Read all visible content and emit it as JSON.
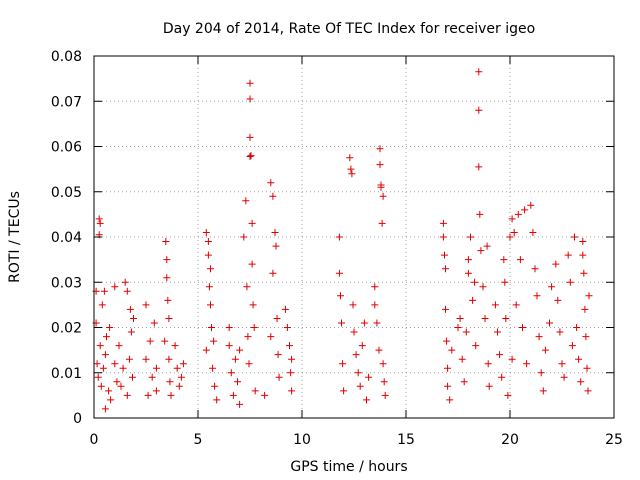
{
  "chart_data": {
    "type": "scatter",
    "title": "Day 204 of 2014, Rate Of TEC Index for receiver igeo",
    "xlabel": "GPS time / hours",
    "ylabel": "ROTI / TECUs",
    "xlim": [
      0,
      25
    ],
    "ylim": [
      0,
      0.08
    ],
    "x_ticks": [
      0,
      5,
      10,
      15,
      20,
      25
    ],
    "x_tick_labels": [
      "0",
      "5",
      "10",
      "15",
      "20",
      "25"
    ],
    "y_ticks": [
      0,
      0.01,
      0.02,
      0.03,
      0.04,
      0.05,
      0.06,
      0.07,
      0.08
    ],
    "y_tick_labels": [
      "0",
      "0.01",
      "0.02",
      "0.03",
      "0.04",
      "0.05",
      "0.06",
      "0.07",
      "0.08"
    ],
    "grid": true,
    "marker": "+",
    "marker_color": "#e00000",
    "series": [
      {
        "name": "ROTI",
        "points": [
          [
            0.1,
            0.028
          ],
          [
            0.1,
            0.021
          ],
          [
            0.15,
            0.012
          ],
          [
            0.2,
            0.009
          ],
          [
            0.25,
            0.044
          ],
          [
            0.25,
            0.0405
          ],
          [
            0.3,
            0.043
          ],
          [
            0.3,
            0.016
          ],
          [
            0.35,
            0.007
          ],
          [
            0.4,
            0.025
          ],
          [
            0.45,
            0.011
          ],
          [
            0.5,
            0.028
          ],
          [
            0.55,
            0.002
          ],
          [
            0.55,
            0.014
          ],
          [
            0.6,
            0.018
          ],
          [
            0.7,
            0.006
          ],
          [
            0.75,
            0.02
          ],
          [
            0.8,
            0.004
          ],
          [
            1.0,
            0.029
          ],
          [
            1.0,
            0.012
          ],
          [
            1.1,
            0.008
          ],
          [
            1.2,
            0.016
          ],
          [
            1.3,
            0.007
          ],
          [
            1.4,
            0.011
          ],
          [
            1.5,
            0.03
          ],
          [
            1.6,
            0.028
          ],
          [
            1.6,
            0.005
          ],
          [
            1.7,
            0.013
          ],
          [
            1.75,
            0.024
          ],
          [
            1.8,
            0.019
          ],
          [
            1.85,
            0.009
          ],
          [
            1.9,
            0.022
          ],
          [
            2.5,
            0.025
          ],
          [
            2.5,
            0.013
          ],
          [
            2.6,
            0.005
          ],
          [
            2.7,
            0.017
          ],
          [
            2.8,
            0.009
          ],
          [
            2.9,
            0.021
          ],
          [
            3.0,
            0.011
          ],
          [
            3.0,
            0.006
          ],
          [
            3.4,
            0.017
          ],
          [
            3.45,
            0.039
          ],
          [
            3.5,
            0.035
          ],
          [
            3.5,
            0.031
          ],
          [
            3.55,
            0.026
          ],
          [
            3.6,
            0.022
          ],
          [
            3.6,
            0.013
          ],
          [
            3.65,
            0.008
          ],
          [
            3.7,
            0.005
          ],
          [
            3.9,
            0.016
          ],
          [
            4.0,
            0.011
          ],
          [
            4.1,
            0.007
          ],
          [
            4.2,
            0.009
          ],
          [
            4.3,
            0.012
          ],
          [
            5.4,
            0.041
          ],
          [
            5.4,
            0.015
          ],
          [
            5.5,
            0.039
          ],
          [
            5.5,
            0.036
          ],
          [
            5.55,
            0.029
          ],
          [
            5.6,
            0.033
          ],
          [
            5.6,
            0.025
          ],
          [
            5.65,
            0.02
          ],
          [
            5.7,
            0.011
          ],
          [
            5.75,
            0.017
          ],
          [
            5.8,
            0.007
          ],
          [
            5.9,
            0.004
          ],
          [
            6.5,
            0.02
          ],
          [
            6.5,
            0.016
          ],
          [
            6.6,
            0.01
          ],
          [
            6.7,
            0.005
          ],
          [
            6.8,
            0.013
          ],
          [
            6.9,
            0.008
          ],
          [
            7.0,
            0.015
          ],
          [
            7.0,
            0.003
          ],
          [
            7.2,
            0.04
          ],
          [
            7.3,
            0.048
          ],
          [
            7.35,
            0.029
          ],
          [
            7.4,
            0.018
          ],
          [
            7.45,
            0.012
          ],
          [
            7.5,
            0.074
          ],
          [
            7.5,
            0.0705
          ],
          [
            7.5,
            0.062
          ],
          [
            7.5,
            0.0578
          ],
          [
            7.55,
            0.058
          ],
          [
            7.6,
            0.043
          ],
          [
            7.6,
            0.034
          ],
          [
            7.65,
            0.025
          ],
          [
            7.7,
            0.02
          ],
          [
            7.75,
            0.006
          ],
          [
            8.2,
            0.005
          ],
          [
            8.5,
            0.052
          ],
          [
            8.5,
            0.018
          ],
          [
            8.6,
            0.049
          ],
          [
            8.6,
            0.032
          ],
          [
            8.7,
            0.041
          ],
          [
            8.75,
            0.038
          ],
          [
            8.8,
            0.022
          ],
          [
            8.85,
            0.014
          ],
          [
            8.9,
            0.009
          ],
          [
            9.2,
            0.024
          ],
          [
            9.3,
            0.02
          ],
          [
            9.4,
            0.016
          ],
          [
            9.45,
            0.01
          ],
          [
            9.5,
            0.006
          ],
          [
            9.5,
            0.013
          ],
          [
            11.8,
            0.04
          ],
          [
            11.8,
            0.032
          ],
          [
            11.85,
            0.027
          ],
          [
            11.9,
            0.021
          ],
          [
            11.95,
            0.012
          ],
          [
            12.0,
            0.006
          ],
          [
            12.3,
            0.0575
          ],
          [
            12.35,
            0.055
          ],
          [
            12.4,
            0.054
          ],
          [
            12.45,
            0.025
          ],
          [
            12.5,
            0.019
          ],
          [
            12.6,
            0.014
          ],
          [
            12.7,
            0.01
          ],
          [
            12.8,
            0.007
          ],
          [
            12.9,
            0.016
          ],
          [
            13.0,
            0.021
          ],
          [
            13.1,
            0.004
          ],
          [
            13.2,
            0.009
          ],
          [
            13.5,
            0.029
          ],
          [
            13.5,
            0.025
          ],
          [
            13.6,
            0.021
          ],
          [
            13.7,
            0.015
          ],
          [
            13.75,
            0.0595
          ],
          [
            13.75,
            0.056
          ],
          [
            13.8,
            0.0515
          ],
          [
            13.8,
            0.051
          ],
          [
            13.85,
            0.043
          ],
          [
            13.9,
            0.049
          ],
          [
            13.9,
            0.012
          ],
          [
            13.95,
            0.008
          ],
          [
            14.0,
            0.005
          ],
          [
            16.8,
            0.043
          ],
          [
            16.8,
            0.04
          ],
          [
            16.85,
            0.036
          ],
          [
            16.9,
            0.033
          ],
          [
            16.9,
            0.024
          ],
          [
            16.95,
            0.017
          ],
          [
            17.0,
            0.011
          ],
          [
            17.0,
            0.007
          ],
          [
            17.1,
            0.004
          ],
          [
            17.2,
            0.015
          ],
          [
            17.5,
            0.02
          ],
          [
            17.6,
            0.022
          ],
          [
            17.7,
            0.013
          ],
          [
            17.8,
            0.008
          ],
          [
            17.9,
            0.019
          ],
          [
            18.0,
            0.035
          ],
          [
            18.0,
            0.032
          ],
          [
            18.1,
            0.04
          ],
          [
            18.2,
            0.026
          ],
          [
            18.3,
            0.03
          ],
          [
            18.35,
            0.016
          ],
          [
            18.5,
            0.0765
          ],
          [
            18.5,
            0.068
          ],
          [
            18.5,
            0.0555
          ],
          [
            18.55,
            0.045
          ],
          [
            18.6,
            0.037
          ],
          [
            18.7,
            0.029
          ],
          [
            18.8,
            0.022
          ],
          [
            18.9,
            0.038
          ],
          [
            18.95,
            0.012
          ],
          [
            19.0,
            0.007
          ],
          [
            19.3,
            0.025
          ],
          [
            19.4,
            0.019
          ],
          [
            19.5,
            0.014
          ],
          [
            19.6,
            0.009
          ],
          [
            19.7,
            0.035
          ],
          [
            19.75,
            0.03
          ],
          [
            19.8,
            0.022
          ],
          [
            19.9,
            0.005
          ],
          [
            20.0,
            0.04
          ],
          [
            20.1,
            0.044
          ],
          [
            20.1,
            0.013
          ],
          [
            20.2,
            0.041
          ],
          [
            20.3,
            0.025
          ],
          [
            20.4,
            0.045
          ],
          [
            20.5,
            0.035
          ],
          [
            20.6,
            0.02
          ],
          [
            20.7,
            0.046
          ],
          [
            20.8,
            0.012
          ],
          [
            21.0,
            0.047
          ],
          [
            21.1,
            0.041
          ],
          [
            21.2,
            0.033
          ],
          [
            21.3,
            0.027
          ],
          [
            21.4,
            0.018
          ],
          [
            21.5,
            0.01
          ],
          [
            21.6,
            0.006
          ],
          [
            21.7,
            0.015
          ],
          [
            21.9,
            0.021
          ],
          [
            22.0,
            0.029
          ],
          [
            22.2,
            0.034
          ],
          [
            22.3,
            0.026
          ],
          [
            22.4,
            0.019
          ],
          [
            22.5,
            0.012
          ],
          [
            22.6,
            0.009
          ],
          [
            22.8,
            0.036
          ],
          [
            22.9,
            0.03
          ],
          [
            23.0,
            0.016
          ],
          [
            23.1,
            0.04
          ],
          [
            23.2,
            0.02
          ],
          [
            23.3,
            0.013
          ],
          [
            23.4,
            0.008
          ],
          [
            23.5,
            0.039
          ],
          [
            23.5,
            0.036
          ],
          [
            23.55,
            0.032
          ],
          [
            23.6,
            0.024
          ],
          [
            23.65,
            0.018
          ],
          [
            23.7,
            0.011
          ],
          [
            23.75,
            0.006
          ],
          [
            23.8,
            0.027
          ]
        ]
      }
    ]
  }
}
